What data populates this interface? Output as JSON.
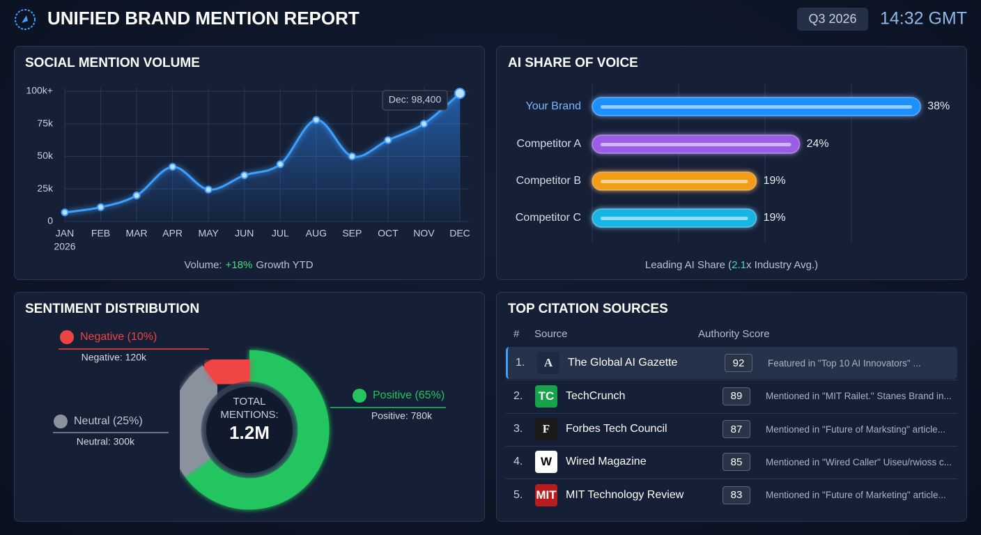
{
  "header": {
    "title": "UNIFIED BRAND MENTION REPORT",
    "period": "Q3 2026",
    "time": "14:32 GMT"
  },
  "chart_data": [
    {
      "type": "line",
      "title": "SOCIAL MENTION VOLUME",
      "categories": [
        "JAN",
        "FEB",
        "MAR",
        "APR",
        "MAY",
        "JUN",
        "JUL",
        "AUG",
        "SEP",
        "OCT",
        "NOV",
        "DEC"
      ],
      "year_label": "2026",
      "values": [
        7000,
        11000,
        20000,
        42000,
        24500,
        35500,
        44000,
        78000,
        50000,
        62500,
        75000,
        98400
      ],
      "value_labels": [
        null,
        null,
        null,
        null,
        null,
        null,
        null,
        null,
        null,
        null,
        null,
        "Dec: 98,400"
      ],
      "color": "#3ea0ff",
      "ylim": [
        0,
        100000
      ],
      "yticks": [
        0,
        {
          "value": 25000,
          "label": "25k"
        },
        {
          "value": 50000,
          "label": "50k"
        },
        {
          "value": 75000,
          "label": "75k"
        },
        {
          "value": 100000,
          "label": "100k+"
        }
      ],
      "grid": true,
      "footer": [
        "Volume:",
        "+18%",
        "Growth YTD"
      ]
    },
    {
      "type": "bar",
      "orientation": "horizontal",
      "title": "AI SHARE OF VOICE",
      "categories": [
        "Your Brand",
        "Competitor A",
        "Competitor B",
        "Competitor C"
      ],
      "values": [
        38,
        24,
        19,
        19
      ],
      "value_labels": [
        "38%",
        "24%",
        "19%",
        "19%"
      ],
      "colors": [
        "#1e90ff",
        "#9b5de5",
        "#f39c12",
        "#19b5e6"
      ],
      "xlim": [
        0,
        40
      ],
      "xticks": [
        0,
        10,
        20,
        30
      ],
      "tick_labels": false,
      "grid": true,
      "footer": [
        "Leading AI Share (",
        "2.1",
        "x Industry Avg.)"
      ]
    },
    {
      "type": "pie",
      "donut": true,
      "title": "SENTIMENT DISTRIBUTION",
      "categories": [
        "Positive",
        "Neutral",
        "Negative"
      ],
      "values": [
        65,
        25,
        10
      ],
      "value_labels": [
        "Positive (65%)",
        "Neutral (25%)",
        "Negative (10%)"
      ],
      "count_labels": [
        "Positive: 780k",
        "Neutral: 300k",
        "Negative: 120k"
      ],
      "colors": [
        "#22c55e",
        "#8a929e",
        "#ef4444"
      ],
      "center_label": "TOTAL MENTIONS:",
      "total_label": "1.2M"
    }
  ],
  "table": {
    "title": "TOP CITATION SOURCES",
    "columns": [
      "#",
      "Source",
      "Authority Score"
    ],
    "rows": [
      {
        "rank": "1.",
        "logo": "A",
        "source": "The Global AI Gazette",
        "score": 92,
        "note": "Featured in \"Top 10 AI Innovators\" ..."
      },
      {
        "rank": "2.",
        "logo": "TC",
        "source": "TechCrunch",
        "score": 89,
        "note": "Mentioned in \"MIT Railet.\" Stanes Brand in..."
      },
      {
        "rank": "3.",
        "logo": "F",
        "source": "Forbes Tech Council",
        "score": 87,
        "note": "Mentioned in \"Future of Marksting\" article..."
      },
      {
        "rank": "4.",
        "logo": "W",
        "source": "Wired Magazine",
        "score": 85,
        "note": "Mentioned in \"Wired Caller\" Uiseu/rwioss c..."
      },
      {
        "rank": "5.",
        "logo": "MIT",
        "source": "MIT Technology Review",
        "score": 83,
        "note": "Mentioned in \"Future of Marketing\" article..."
      }
    ]
  }
}
